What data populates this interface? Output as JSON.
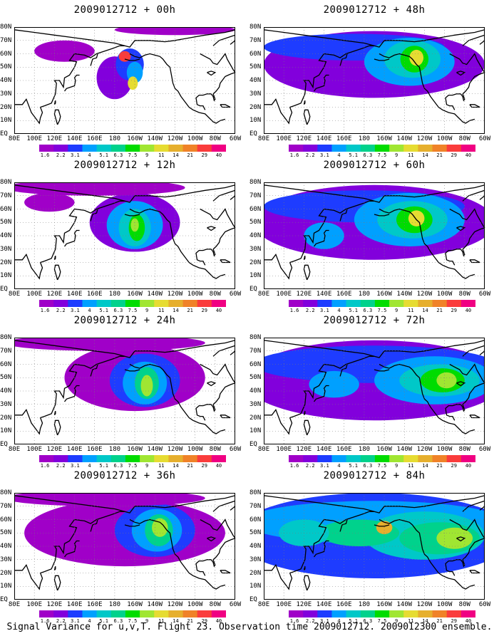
{
  "caption": "Signal Variance for u,v,T. Flight 23. Observation time 2009012712. 2009012300 ensemble.",
  "y_tick_labels": [
    "80N",
    "70N",
    "60N",
    "50N",
    "40N",
    "30N",
    "20N",
    "10N",
    "EQ"
  ],
  "x_tick_labels": [
    "80E",
    "100E",
    "120E",
    "140E",
    "160E",
    "180",
    "160W",
    "140W",
    "120W",
    "100W",
    "80W",
    "60W"
  ],
  "colorbar": {
    "levels": [
      "1.6",
      "2.2",
      "3.1",
      "4",
      "5.1",
      "6.3",
      "7.5",
      "9",
      "11",
      "14",
      "21",
      "29",
      "40"
    ],
    "colors": [
      "#a000c8",
      "#8200dc",
      "#1e3cff",
      "#00a0ff",
      "#00c8c8",
      "#00d28c",
      "#00dc00",
      "#a0e632",
      "#e6dc32",
      "#e6af2d",
      "#f08228",
      "#fa3c3c",
      "#f00082"
    ]
  },
  "colors": {
    "land_outline": "#000000",
    "grid": "#7a7a7a",
    "background": "#ffffff"
  },
  "chart_data": [
    {
      "type": "heatmap",
      "title": "2009012712 + 00h",
      "lead": "00h",
      "x_range": [
        "80E",
        "60W"
      ],
      "y_range": [
        "EQ",
        "80N"
      ],
      "blobs": [
        {
          "lon": 180,
          "lat": 42,
          "rx": 18,
          "ry": 16,
          "level": 1
        },
        {
          "lon": 195,
          "lat": 52,
          "rx": 14,
          "ry": 12,
          "level": 2
        },
        {
          "lon": 200,
          "lat": 46,
          "rx": 8,
          "ry": 8,
          "level": 3
        },
        {
          "lon": 198,
          "lat": 38,
          "rx": 5,
          "ry": 5,
          "level": 8
        },
        {
          "lon": 190,
          "lat": 58,
          "rx": 6,
          "ry": 4,
          "level": 11
        },
        {
          "lon": 130,
          "lat": 62,
          "rx": 30,
          "ry": 8,
          "level": 0
        },
        {
          "lon": 240,
          "lat": 78,
          "rx": 60,
          "ry": 4,
          "level": 0
        }
      ]
    },
    {
      "type": "heatmap",
      "title": "2009012712 + 12h",
      "lead": "12h",
      "x_range": [
        "80E",
        "60W"
      ],
      "y_range": [
        "EQ",
        "80N"
      ],
      "blobs": [
        {
          "lon": 200,
          "lat": 50,
          "rx": 45,
          "ry": 22,
          "level": 1
        },
        {
          "lon": 200,
          "lat": 48,
          "rx": 28,
          "ry": 18,
          "level": 3
        },
        {
          "lon": 200,
          "lat": 46,
          "rx": 16,
          "ry": 14,
          "level": 4
        },
        {
          "lon": 202,
          "lat": 46,
          "rx": 8,
          "ry": 10,
          "level": 6
        },
        {
          "lon": 200,
          "lat": 48,
          "rx": 4,
          "ry": 5,
          "level": 7
        },
        {
          "lon": 160,
          "lat": 76,
          "rx": 90,
          "ry": 6,
          "level": 0
        },
        {
          "lon": 115,
          "lat": 65,
          "rx": 25,
          "ry": 7,
          "level": 0
        }
      ]
    },
    {
      "type": "heatmap",
      "title": "2009012712 + 24h",
      "lead": "24h",
      "x_range": [
        "80E",
        "60W"
      ],
      "y_range": [
        "EQ",
        "80N"
      ],
      "blobs": [
        {
          "lon": 200,
          "lat": 50,
          "rx": 70,
          "ry": 25,
          "level": 0
        },
        {
          "lon": 210,
          "lat": 48,
          "rx": 35,
          "ry": 20,
          "level": 2
        },
        {
          "lon": 210,
          "lat": 46,
          "rx": 22,
          "ry": 16,
          "level": 3
        },
        {
          "lon": 212,
          "lat": 46,
          "rx": 12,
          "ry": 12,
          "level": 5
        },
        {
          "lon": 212,
          "lat": 44,
          "rx": 6,
          "ry": 8,
          "level": 7
        },
        {
          "lon": 170,
          "lat": 76,
          "rx": 100,
          "ry": 6,
          "level": 0
        }
      ]
    },
    {
      "type": "heatmap",
      "title": "2009012712 + 36h",
      "lead": "36h",
      "x_range": [
        "80E",
        "60W"
      ],
      "y_range": [
        "EQ",
        "80N"
      ],
      "blobs": [
        {
          "lon": 190,
          "lat": 50,
          "rx": 100,
          "ry": 25,
          "level": 0
        },
        {
          "lon": 220,
          "lat": 52,
          "rx": 40,
          "ry": 20,
          "level": 2
        },
        {
          "lon": 222,
          "lat": 52,
          "rx": 25,
          "ry": 16,
          "level": 3
        },
        {
          "lon": 224,
          "lat": 52,
          "rx": 14,
          "ry": 12,
          "level": 5
        },
        {
          "lon": 225,
          "lat": 54,
          "rx": 8,
          "ry": 7,
          "level": 7
        },
        {
          "lon": 170,
          "lat": 76,
          "rx": 100,
          "ry": 6,
          "level": 0
        }
      ]
    },
    {
      "type": "heatmap",
      "title": "2009012712 + 48h",
      "lead": "48h",
      "x_range": [
        "80E",
        "60W"
      ],
      "y_range": [
        "EQ",
        "80N"
      ],
      "blobs": [
        {
          "lon": 190,
          "lat": 52,
          "rx": 110,
          "ry": 25,
          "level": 1
        },
        {
          "lon": 170,
          "lat": 65,
          "rx": 90,
          "ry": 10,
          "level": 2
        },
        {
          "lon": 225,
          "lat": 54,
          "rx": 45,
          "ry": 18,
          "level": 3
        },
        {
          "lon": 228,
          "lat": 56,
          "rx": 28,
          "ry": 14,
          "level": 4
        },
        {
          "lon": 230,
          "lat": 56,
          "rx": 14,
          "ry": 10,
          "level": 6
        },
        {
          "lon": 232,
          "lat": 57,
          "rx": 7,
          "ry": 6,
          "level": 8
        }
      ]
    },
    {
      "type": "heatmap",
      "title": "2009012712 + 60h",
      "lead": "60h",
      "x_range": [
        "80E",
        "60W"
      ],
      "y_range": [
        "EQ",
        "80N"
      ],
      "blobs": [
        {
          "lon": 190,
          "lat": 50,
          "rx": 120,
          "ry": 28,
          "level": 1
        },
        {
          "lon": 180,
          "lat": 62,
          "rx": 100,
          "ry": 12,
          "level": 2
        },
        {
          "lon": 225,
          "lat": 52,
          "rx": 55,
          "ry": 20,
          "level": 3
        },
        {
          "lon": 228,
          "lat": 52,
          "rx": 35,
          "ry": 14,
          "level": 4
        },
        {
          "lon": 230,
          "lat": 52,
          "rx": 18,
          "ry": 10,
          "level": 6
        },
        {
          "lon": 232,
          "lat": 53,
          "rx": 8,
          "ry": 6,
          "level": 8
        },
        {
          "lon": 140,
          "lat": 40,
          "rx": 20,
          "ry": 10,
          "level": 3
        }
      ]
    },
    {
      "type": "heatmap",
      "title": "2009012712 + 72h",
      "lead": "72h",
      "x_range": [
        "80E",
        "60W"
      ],
      "y_range": [
        "EQ",
        "80N"
      ],
      "blobs": [
        {
          "lon": 190,
          "lat": 48,
          "rx": 130,
          "ry": 30,
          "level": 1
        },
        {
          "lon": 190,
          "lat": 60,
          "rx": 120,
          "ry": 14,
          "level": 2
        },
        {
          "lon": 250,
          "lat": 48,
          "rx": 60,
          "ry": 18,
          "level": 3
        },
        {
          "lon": 255,
          "lat": 48,
          "rx": 40,
          "ry": 12,
          "level": 4
        },
        {
          "lon": 258,
          "lat": 48,
          "rx": 22,
          "ry": 9,
          "level": 6
        },
        {
          "lon": 262,
          "lat": 48,
          "rx": 10,
          "ry": 6,
          "level": 7
        },
        {
          "lon": 150,
          "lat": 45,
          "rx": 25,
          "ry": 10,
          "level": 3
        }
      ]
    },
    {
      "type": "heatmap",
      "title": "2009012712 + 84h",
      "lead": "84h",
      "x_range": [
        "80E",
        "60W"
      ],
      "y_range": [
        "EQ",
        "80N"
      ],
      "blobs": [
        {
          "lon": 190,
          "lat": 48,
          "rx": 140,
          "ry": 32,
          "level": 2
        },
        {
          "lon": 190,
          "lat": 58,
          "rx": 130,
          "ry": 16,
          "level": 3
        },
        {
          "lon": 240,
          "lat": 48,
          "rx": 60,
          "ry": 18,
          "level": 4
        },
        {
          "lon": 255,
          "lat": 46,
          "rx": 40,
          "ry": 12,
          "level": 5
        },
        {
          "lon": 270,
          "lat": 46,
          "rx": 18,
          "ry": 8,
          "level": 7
        },
        {
          "lon": 175,
          "lat": 50,
          "rx": 40,
          "ry": 10,
          "level": 5
        },
        {
          "lon": 120,
          "lat": 50,
          "rx": 25,
          "ry": 10,
          "level": 4
        },
        {
          "lon": 200,
          "lat": 54,
          "rx": 8,
          "ry": 5,
          "level": 9
        }
      ]
    }
  ]
}
